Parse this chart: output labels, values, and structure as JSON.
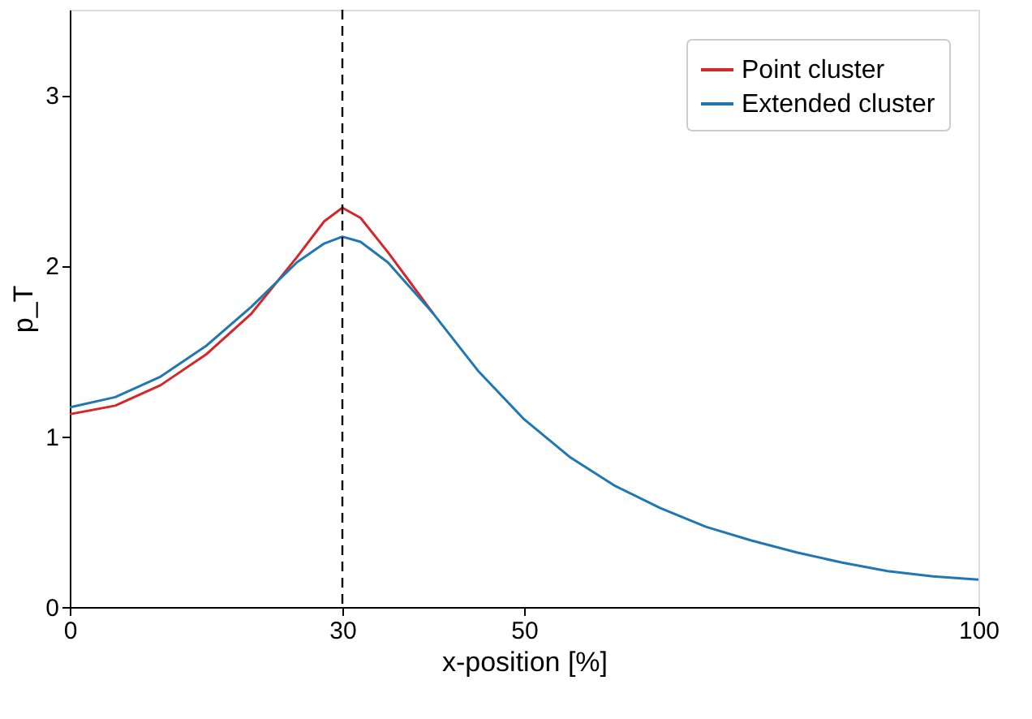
{
  "chart_data": {
    "type": "line",
    "xlabel": "x-position [%]",
    "ylabel": "p_T",
    "x": [
      0,
      5,
      10,
      15,
      20,
      25,
      28,
      30,
      32,
      35,
      40,
      45,
      50,
      55,
      60,
      65,
      70,
      75,
      80,
      85,
      90,
      95,
      100
    ],
    "series": [
      {
        "name": "Point cluster",
        "color": "#d62728",
        "values": [
          1.13,
          1.18,
          1.3,
          1.48,
          1.72,
          2.05,
          2.26,
          2.34,
          2.28,
          2.08,
          1.72,
          null,
          null,
          null,
          null,
          null,
          null,
          null,
          null,
          null,
          null,
          null,
          null
        ]
      },
      {
        "name": "Extended cluster",
        "color": "#1f77b4",
        "values": [
          1.17,
          1.23,
          1.35,
          1.53,
          1.76,
          2.02,
          2.13,
          2.17,
          2.14,
          2.02,
          1.72,
          1.38,
          1.1,
          0.88,
          0.71,
          0.58,
          0.47,
          0.39,
          0.32,
          0.26,
          0.21,
          0.18,
          0.16
        ]
      }
    ],
    "xlim": [
      0,
      100
    ],
    "xticks": [
      0,
      30,
      50,
      100
    ],
    "ylim": [
      0,
      3.5
    ],
    "yticks": [
      0,
      1,
      2,
      3
    ],
    "ref_lines": [
      {
        "axis": "x",
        "value": 30,
        "color": "#000000",
        "line_style": "dashed"
      }
    ],
    "legend": "top right",
    "grid": false,
    "marker": "none",
    "line_style": "solid"
  }
}
